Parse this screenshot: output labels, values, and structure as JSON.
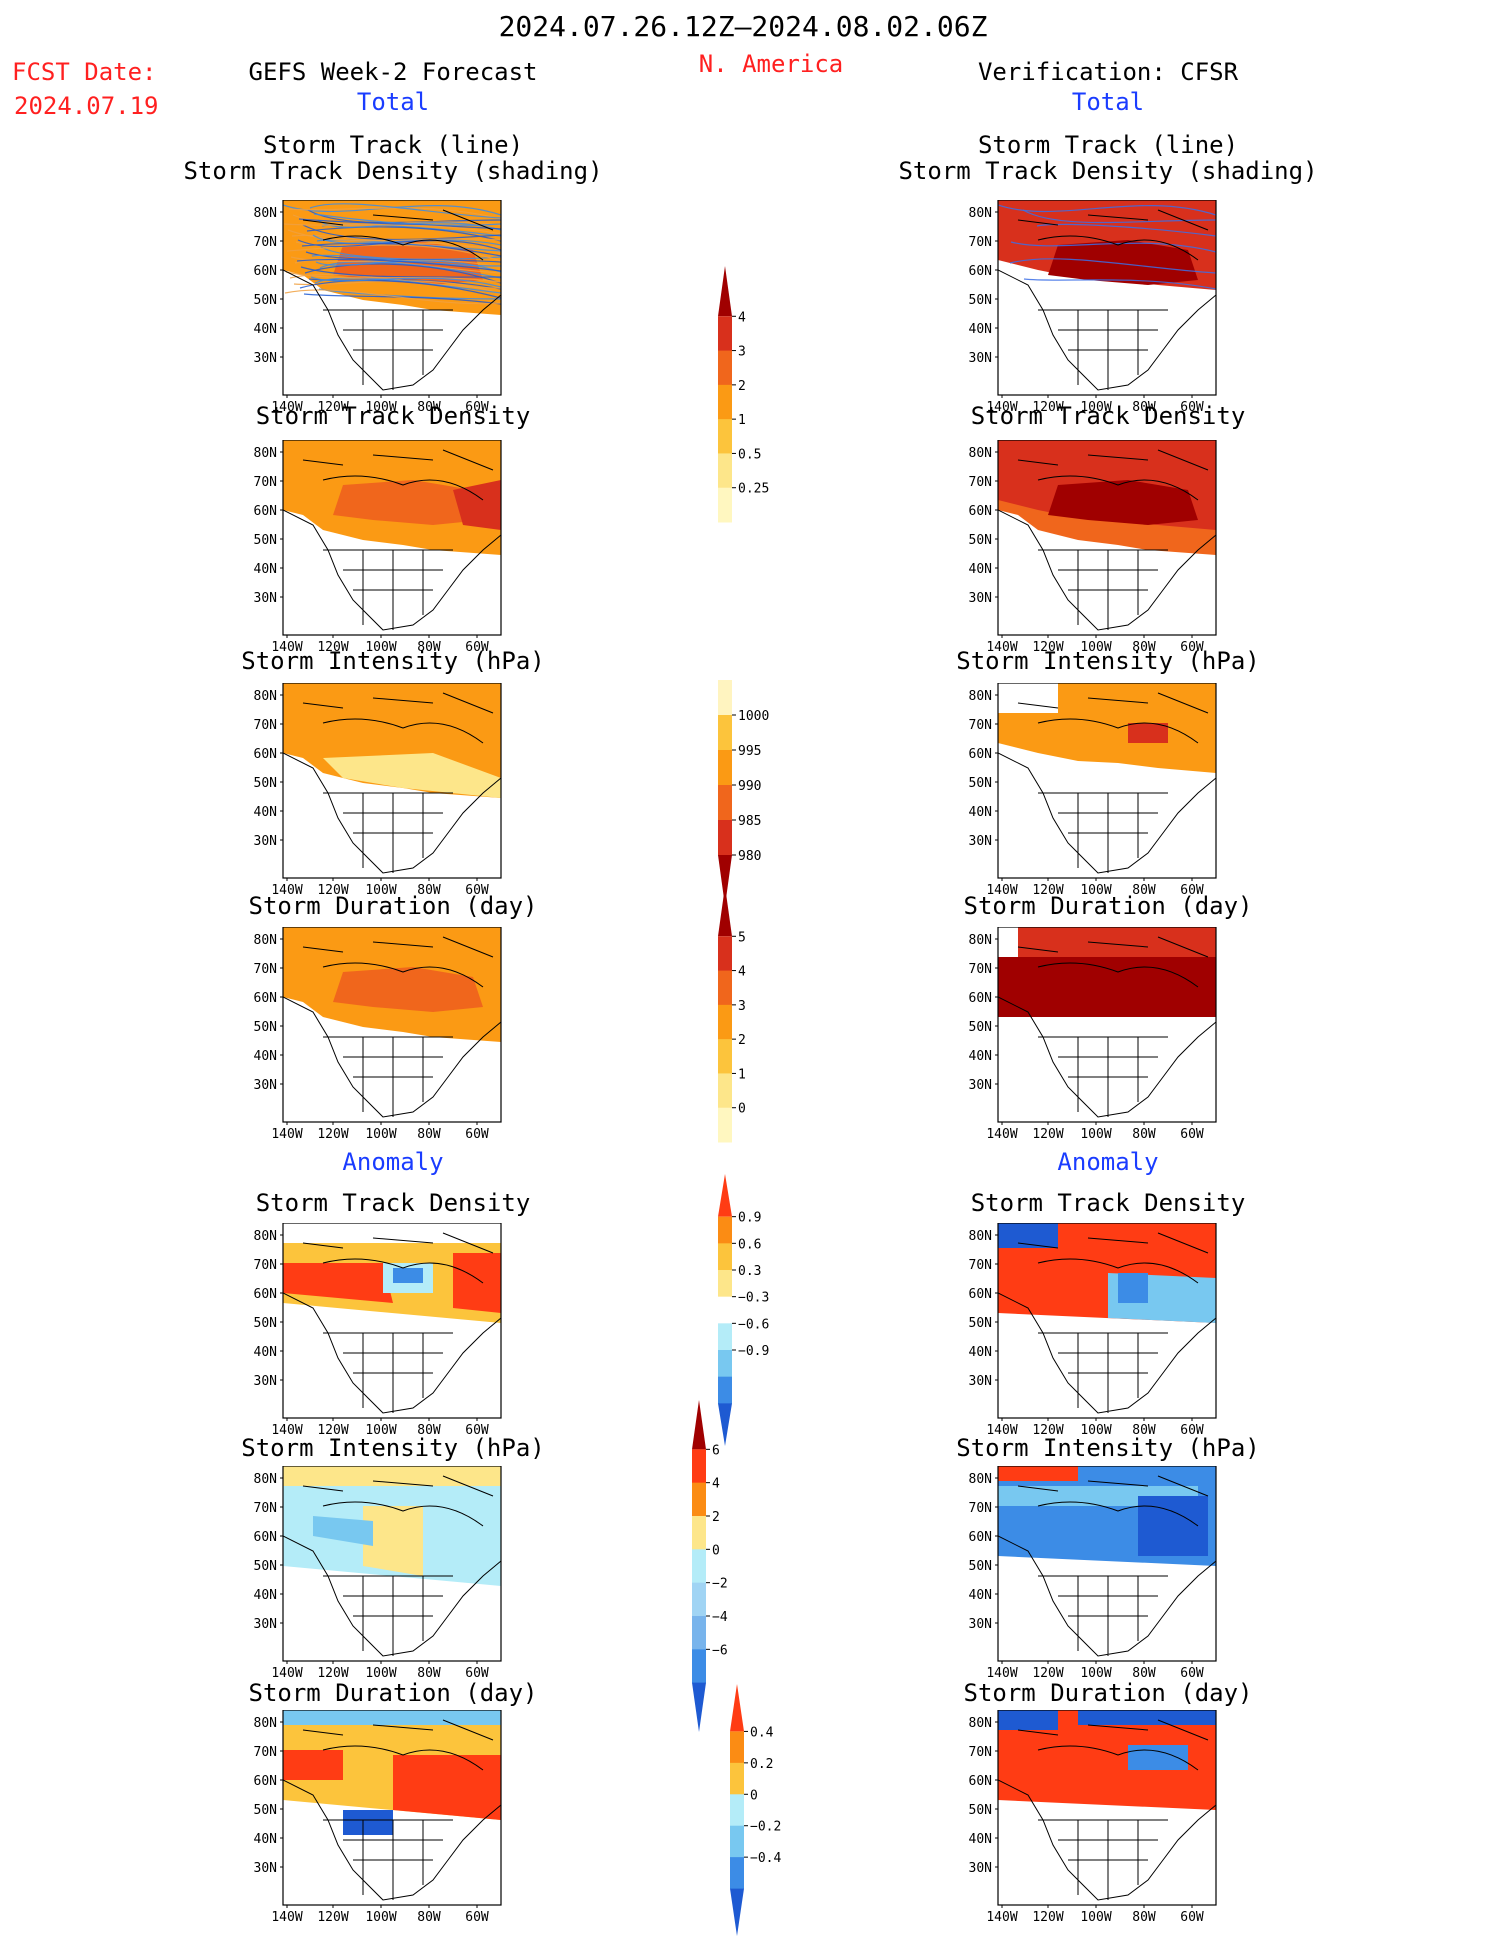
{
  "header": {
    "date_range": "2024.07.26.12Z–2024.08.02.06Z",
    "region": "N. America",
    "fcst_label": "FCST Date:",
    "fcst_date": "2024.07.19",
    "left_title": "GEFS Week-2 Forecast",
    "right_title": "Verification: CFSR",
    "total_label_left": "Total",
    "total_label_right": "Total",
    "anomaly_label_left": "Anomaly",
    "anomaly_label_right": "Anomaly"
  },
  "axes": {
    "lat_ticks": [
      "80N",
      "70N",
      "60N",
      "50N",
      "40N",
      "30N"
    ],
    "lon_ticks": [
      "140W",
      "120W",
      "100W",
      "80W",
      "60W"
    ]
  },
  "panels": {
    "p1": {
      "title": "Storm Track (line)\nStorm Track Density (shading)"
    },
    "p2": {
      "title": "Storm Track Density"
    },
    "p3": {
      "title": "Storm Intensity (hPa)"
    },
    "p4": {
      "title": "Storm Duration (day)"
    },
    "p5": {
      "title": "Storm Track Density"
    },
    "p6": {
      "title": "Storm Intensity (hPa)"
    },
    "p7": {
      "title": "Storm Duration (day)"
    }
  },
  "colorbars": {
    "density": {
      "labels": [
        "4",
        "3",
        "2",
        "1",
        "0.5",
        "0.25"
      ],
      "colors": [
        "#a00000",
        "#d8301c",
        "#f0661c",
        "#fb9a14",
        "#fcc43c",
        "#fde68a",
        "#fff7c0"
      ]
    },
    "intensity": {
      "labels": [
        "1000",
        "995",
        "990",
        "985",
        "980"
      ],
      "colors": [
        "#fff4c0",
        "#fcc43c",
        "#fb9a14",
        "#f0661c",
        "#d8301c",
        "#a00000"
      ]
    },
    "duration": {
      "labels": [
        "5",
        "4",
        "3",
        "2",
        "1",
        "0"
      ],
      "colors": [
        "#a00000",
        "#d8301c",
        "#f0661c",
        "#fb9a14",
        "#fcc43c",
        "#fde68a",
        "#fff7c0"
      ]
    },
    "anom_density": {
      "labels": [
        "0.9",
        "0.6",
        "0.3",
        "−0.3",
        "−0.6",
        "−0.9"
      ],
      "colors": [
        "#ff3c14",
        "#fb8c14",
        "#fcc43c",
        "#fde68a",
        "#ffffff",
        "#b4ecf8",
        "#78c8f0",
        "#3c8ce6",
        "#1e5ad2"
      ]
    },
    "anom_intensity": {
      "labels": [
        "6",
        "4",
        "2",
        "0",
        "−2",
        "−4",
        "−6"
      ],
      "colors": [
        "#a00000",
        "#ff3c14",
        "#fb8c14",
        "#fde68a",
        "#b4ecf8",
        "#a0d4f4",
        "#78b4ec",
        "#3c8ce6",
        "#1e5ad2"
      ]
    },
    "anom_duration": {
      "labels": [
        "0.4",
        "0.2",
        "0",
        "−0.2",
        "−0.4"
      ],
      "colors": [
        "#ff3c14",
        "#fb8c14",
        "#fcc43c",
        "#b4ecf8",
        "#78c8f0",
        "#3c8ce6",
        "#1e5ad2"
      ]
    }
  }
}
